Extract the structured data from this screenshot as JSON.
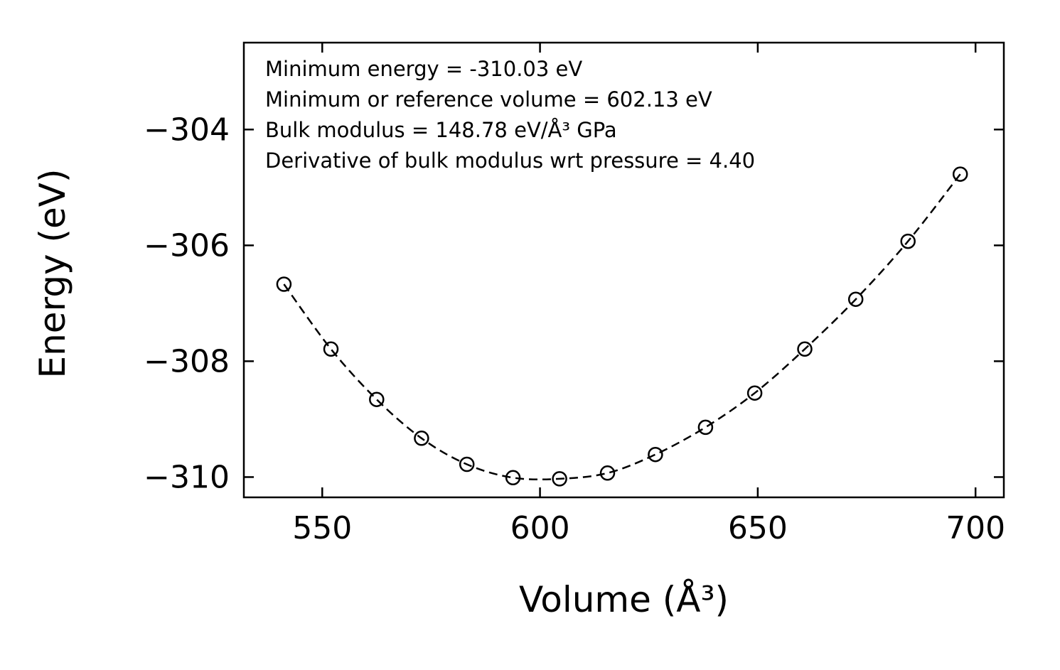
{
  "chart_data": {
    "type": "scatter",
    "title": "",
    "xlabel": "Volume (Å³)",
    "ylabel": "Energy (eV)",
    "xlim": [
      532,
      706.5
    ],
    "ylim": [
      -310.35,
      -302.5
    ],
    "grid": false,
    "legend": false,
    "tick_direction": "in",
    "xticks": {
      "values": [
        550,
        600,
        650,
        700
      ],
      "labels": [
        "550",
        "600",
        "650",
        "700"
      ]
    },
    "yticks": {
      "values": [
        -304,
        -306,
        -308,
        -310
      ],
      "labels": [
        "−304",
        "−306",
        "−308",
        "−310"
      ]
    },
    "annotation": [
      "Minimum energy = -310.03 eV",
      "Minimum or reference volume = 602.13 eV",
      "Bulk modulus = 148.78 eV/Å³ GPa",
      "Derivative of bulk modulus wrt pressure = 4.40"
    ],
    "fit_results": {
      "minimum_energy_eV": -310.03,
      "minimum_or_reference_volume": 602.13,
      "bulk_modulus": 148.78,
      "bulk_modulus_pressure_derivative": 4.4
    },
    "series": [
      {
        "name": "energy-volume-points",
        "marker": "open-circle",
        "line_style": "dashed",
        "color": "#000000",
        "points": [
          [
            541.2,
            -306.67
          ],
          [
            552.0,
            -307.79
          ],
          [
            562.5,
            -308.66
          ],
          [
            572.8,
            -309.33
          ],
          [
            583.2,
            -309.78
          ],
          [
            593.8,
            -310.01
          ],
          [
            604.5,
            -310.03
          ],
          [
            615.5,
            -309.93
          ],
          [
            626.5,
            -309.61
          ],
          [
            638.0,
            -309.14
          ],
          [
            649.3,
            -308.55
          ],
          [
            660.8,
            -307.79
          ],
          [
            672.5,
            -306.93
          ],
          [
            684.5,
            -305.93
          ],
          [
            696.5,
            -304.77
          ]
        ]
      }
    ]
  },
  "colors": {
    "foreground": "#000000",
    "background": "#ffffff"
  }
}
